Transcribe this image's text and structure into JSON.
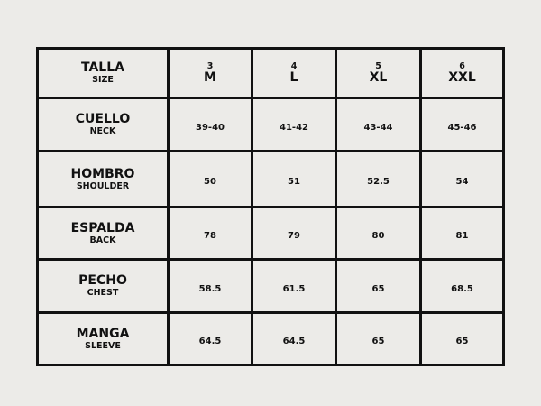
{
  "header": {
    "label": "TALLA",
    "label_en": "SIZE",
    "sizes": [
      {
        "num": "3",
        "size": "M"
      },
      {
        "num": "4",
        "size": "L"
      },
      {
        "num": "5",
        "size": "XL"
      },
      {
        "num": "6",
        "size": "XXL"
      }
    ]
  },
  "rows": [
    {
      "label": "CUELLO",
      "label_en": "NECK",
      "values": [
        "39-40",
        "41-42",
        "43-44",
        "45-46"
      ]
    },
    {
      "label": "HOMBRO",
      "label_en": "SHOULDER",
      "values": [
        "50",
        "51",
        "52.5",
        "54"
      ]
    },
    {
      "label": "ESPALDA",
      "label_en": "BACK",
      "values": [
        "78",
        "79",
        "80",
        "81"
      ]
    },
    {
      "label": "PECHO",
      "label_en": "CHEST",
      "values": [
        "58.5",
        "61.5",
        "65",
        "68.5"
      ]
    },
    {
      "label": "MANGA",
      "label_en": "SLEEVE",
      "values": [
        "64.5",
        "64.5",
        "65",
        "65"
      ]
    }
  ]
}
